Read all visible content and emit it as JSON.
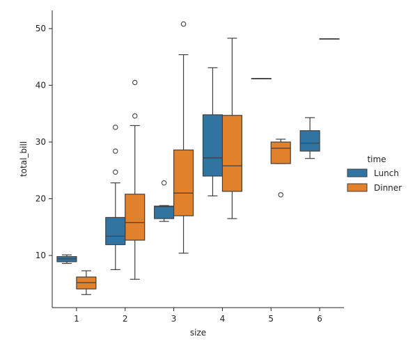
{
  "chart_data": {
    "type": "box",
    "xlabel": "size",
    "ylabel": "total_bill",
    "categories": [
      "1",
      "2",
      "3",
      "4",
      "5",
      "6"
    ],
    "y_ticks": [
      10,
      20,
      30,
      40,
      50
    ],
    "ylim": [
      0.8,
      53.2
    ],
    "grid": false,
    "legend": {
      "title": "time",
      "placement": "right"
    },
    "colors": {
      "Lunch": "#3274a1",
      "Dinner": "#e1812c",
      "edge": "#3f3f3f"
    },
    "series": [
      {
        "name": "Lunch",
        "boxes": [
          {
            "category": "1",
            "whislo": 8.6,
            "q1": 8.9,
            "med": 9.4,
            "q3": 9.8,
            "whishi": 10.1,
            "fliers": []
          },
          {
            "category": "2",
            "whislo": 7.5,
            "q1": 11.9,
            "med": 13.4,
            "q3": 16.7,
            "whishi": 22.8,
            "fliers": [
              24.7,
              28.4,
              32.6
            ]
          },
          {
            "category": "3",
            "whislo": 16.0,
            "q1": 16.5,
            "med": 18.6,
            "q3": 18.7,
            "whishi": 18.8,
            "fliers": [
              22.8
            ]
          },
          {
            "category": "4",
            "whislo": 20.5,
            "q1": 24.0,
            "med": 27.2,
            "q3": 34.8,
            "whishi": 43.1,
            "fliers": []
          },
          {
            "category": "5",
            "whislo": 41.2,
            "q1": 41.2,
            "med": 41.2,
            "q3": 41.2,
            "whishi": 41.2,
            "fliers": []
          },
          {
            "category": "6",
            "whislo": 27.1,
            "q1": 28.4,
            "med": 29.8,
            "q3": 32.0,
            "whishi": 34.3,
            "fliers": []
          }
        ]
      },
      {
        "name": "Dinner",
        "boxes": [
          {
            "category": "1",
            "whislo": 3.1,
            "q1": 4.1,
            "med": 5.2,
            "q3": 6.2,
            "whishi": 7.3,
            "fliers": []
          },
          {
            "category": "2",
            "whislo": 5.8,
            "q1": 12.7,
            "med": 15.8,
            "q3": 20.8,
            "whishi": 32.9,
            "fliers": [
              34.6,
              40.5
            ]
          },
          {
            "category": "3",
            "whislo": 10.4,
            "q1": 17.0,
            "med": 21.0,
            "q3": 28.6,
            "whishi": 45.4,
            "fliers": [
              50.8
            ]
          },
          {
            "category": "4",
            "whislo": 16.5,
            "q1": 21.3,
            "med": 25.8,
            "q3": 34.7,
            "whishi": 48.3,
            "fliers": []
          },
          {
            "category": "5",
            "whislo": 26.2,
            "q1": 26.2,
            "med": 28.9,
            "q3": 30.0,
            "whishi": 30.5,
            "fliers": [
              20.7
            ]
          },
          {
            "category": "6",
            "whislo": 48.2,
            "q1": 48.2,
            "med": 48.2,
            "q3": 48.2,
            "whishi": 48.2,
            "fliers": []
          }
        ]
      }
    ]
  }
}
